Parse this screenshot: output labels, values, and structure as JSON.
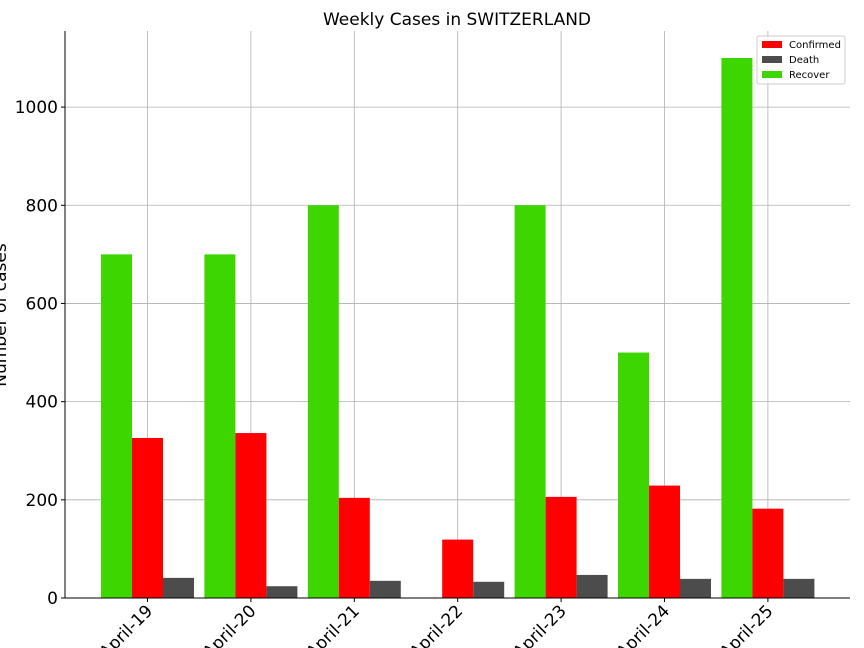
{
  "chart_data": {
    "type": "bar",
    "title": "Weekly Cases in SWITZERLAND",
    "ylabel": "Number of cases",
    "xlabel": "",
    "categories": [
      "April-19",
      "April-20",
      "April-21",
      "April-22",
      "April-23",
      "April-24",
      "April-25"
    ],
    "series": [
      {
        "name": "Recover",
        "color": "#3dd600",
        "values": [
          700,
          700,
          800,
          0,
          800,
          500,
          1100
        ]
      },
      {
        "name": "Confirmed",
        "color": "#ff0000",
        "values": [
          326,
          336,
          204,
          119,
          206,
          229,
          182
        ]
      },
      {
        "name": "Death",
        "color": "#4c4c4c",
        "values": [
          41,
          24,
          35,
          33,
          47,
          39,
          39
        ]
      }
    ],
    "legend_order": [
      "Confirmed",
      "Death",
      "Recover"
    ],
    "legend_position": "top-right",
    "ylim": [
      0,
      1155
    ],
    "yticks": [
      0,
      200,
      400,
      600,
      800,
      1000
    ],
    "grid": true
  }
}
